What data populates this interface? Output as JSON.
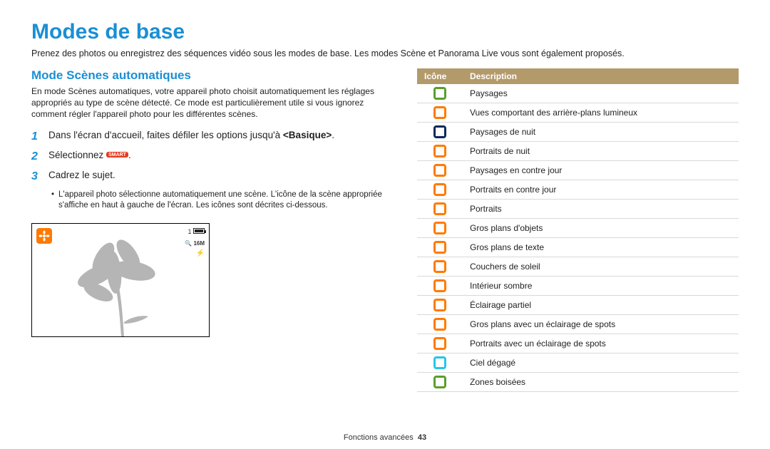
{
  "title": "Modes de base",
  "intro": "Prenez des photos ou enregistrez des séquences vidéo sous les modes de base. Les modes Scène et Panorama Live vous sont également proposés.",
  "subtitle": "Mode Scènes automatiques",
  "paragraph": "En mode Scènes automatiques, votre appareil photo choisit automatiquement les réglages appropriés au type de scène détecté. Ce mode est particulièrement utile si vous ignorez comment régler l'appareil photo pour les différentes scènes.",
  "steps": {
    "n1": "1",
    "s1a": "Dans l'écran d'accueil, faites défiler les options jusqu'à ",
    "s1b": "<Basique>",
    "s1c": ".",
    "n2": "2",
    "s2a": "Sélectionnez ",
    "smart": "SMART",
    "s2b": ".",
    "n3": "3",
    "s3": "Cadrez le sujet.",
    "bullet": "L'appareil photo sélectionne automatiquement une scène. L'icône de la scène appropriée s'affiche en haut à gauche de l'écran. Les icônes sont décrites ci-dessous."
  },
  "lcd": {
    "res": "16M",
    "count": "1"
  },
  "table": {
    "h1": "Icône",
    "h2": "Description",
    "rows": [
      {
        "c": "#5a9e2e",
        "d": "Paysages"
      },
      {
        "c": "#ff7a00",
        "d": "Vues comportant des arrière-plans lumineux"
      },
      {
        "c": "#0a2a5a",
        "d": "Paysages de nuit"
      },
      {
        "c": "#ff7a00",
        "d": "Portraits de nuit"
      },
      {
        "c": "#ff7a00",
        "d": "Paysages en contre jour"
      },
      {
        "c": "#ff7a00",
        "d": "Portraits en contre jour"
      },
      {
        "c": "#ff7a00",
        "d": "Portraits"
      },
      {
        "c": "#ff7a00",
        "d": "Gros plans d'objets"
      },
      {
        "c": "#ff7a00",
        "d": "Gros plans de texte"
      },
      {
        "c": "#ff7a00",
        "d": "Couchers de soleil"
      },
      {
        "c": "#ff7a00",
        "d": "Intérieur sombre"
      },
      {
        "c": "#ff7a00",
        "d": "Éclairage partiel"
      },
      {
        "c": "#ff7a00",
        "d": "Gros plans avec un éclairage de spots"
      },
      {
        "c": "#ff7a00",
        "d": "Portraits avec un éclairage de spots"
      },
      {
        "c": "#29c4e8",
        "d": "Ciel dégagé"
      },
      {
        "c": "#5a9e2e",
        "d": "Zones boisées"
      }
    ]
  },
  "footer": {
    "section": "Fonctions avancées",
    "page": "43"
  }
}
